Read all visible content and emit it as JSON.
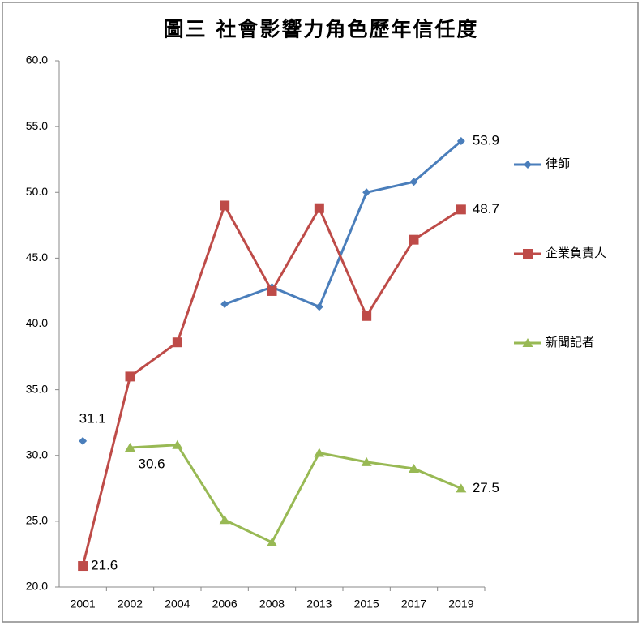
{
  "chart_data": {
    "type": "line",
    "title": "圖三 社會影響力角色歷年信任度",
    "categories": [
      "2001",
      "2002",
      "2004",
      "2006",
      "2008",
      "2013",
      "2015",
      "2017",
      "2019"
    ],
    "series": [
      {
        "name": "律師",
        "color": "#4a7ebb",
        "marker": "diamond",
        "values": [
          31.1,
          null,
          null,
          41.5,
          42.8,
          41.3,
          50.0,
          50.8,
          53.9
        ]
      },
      {
        "name": "企業負責人",
        "color": "#be4b48",
        "marker": "square",
        "values": [
          21.6,
          36.0,
          38.6,
          49.0,
          42.5,
          48.8,
          40.6,
          46.4,
          48.7
        ]
      },
      {
        "name": "新聞記者",
        "color": "#98b954",
        "marker": "triangle",
        "values": [
          null,
          30.6,
          30.8,
          25.1,
          23.4,
          30.2,
          29.5,
          29.0,
          27.5
        ]
      }
    ],
    "ylim": [
      20,
      60
    ],
    "yticks": [
      {
        "value": 20,
        "label": "20.0"
      },
      {
        "value": 25,
        "label": "25.0"
      },
      {
        "value": 30,
        "label": "30.0"
      },
      {
        "value": 35,
        "label": "35.0"
      },
      {
        "value": 40,
        "label": "40.0"
      },
      {
        "value": 45,
        "label": "45.0"
      },
      {
        "value": 50,
        "label": "50.0"
      },
      {
        "value": 55,
        "label": "55.0"
      },
      {
        "value": 60,
        "label": "60.0"
      }
    ],
    "grid": false,
    "legend": "right"
  }
}
